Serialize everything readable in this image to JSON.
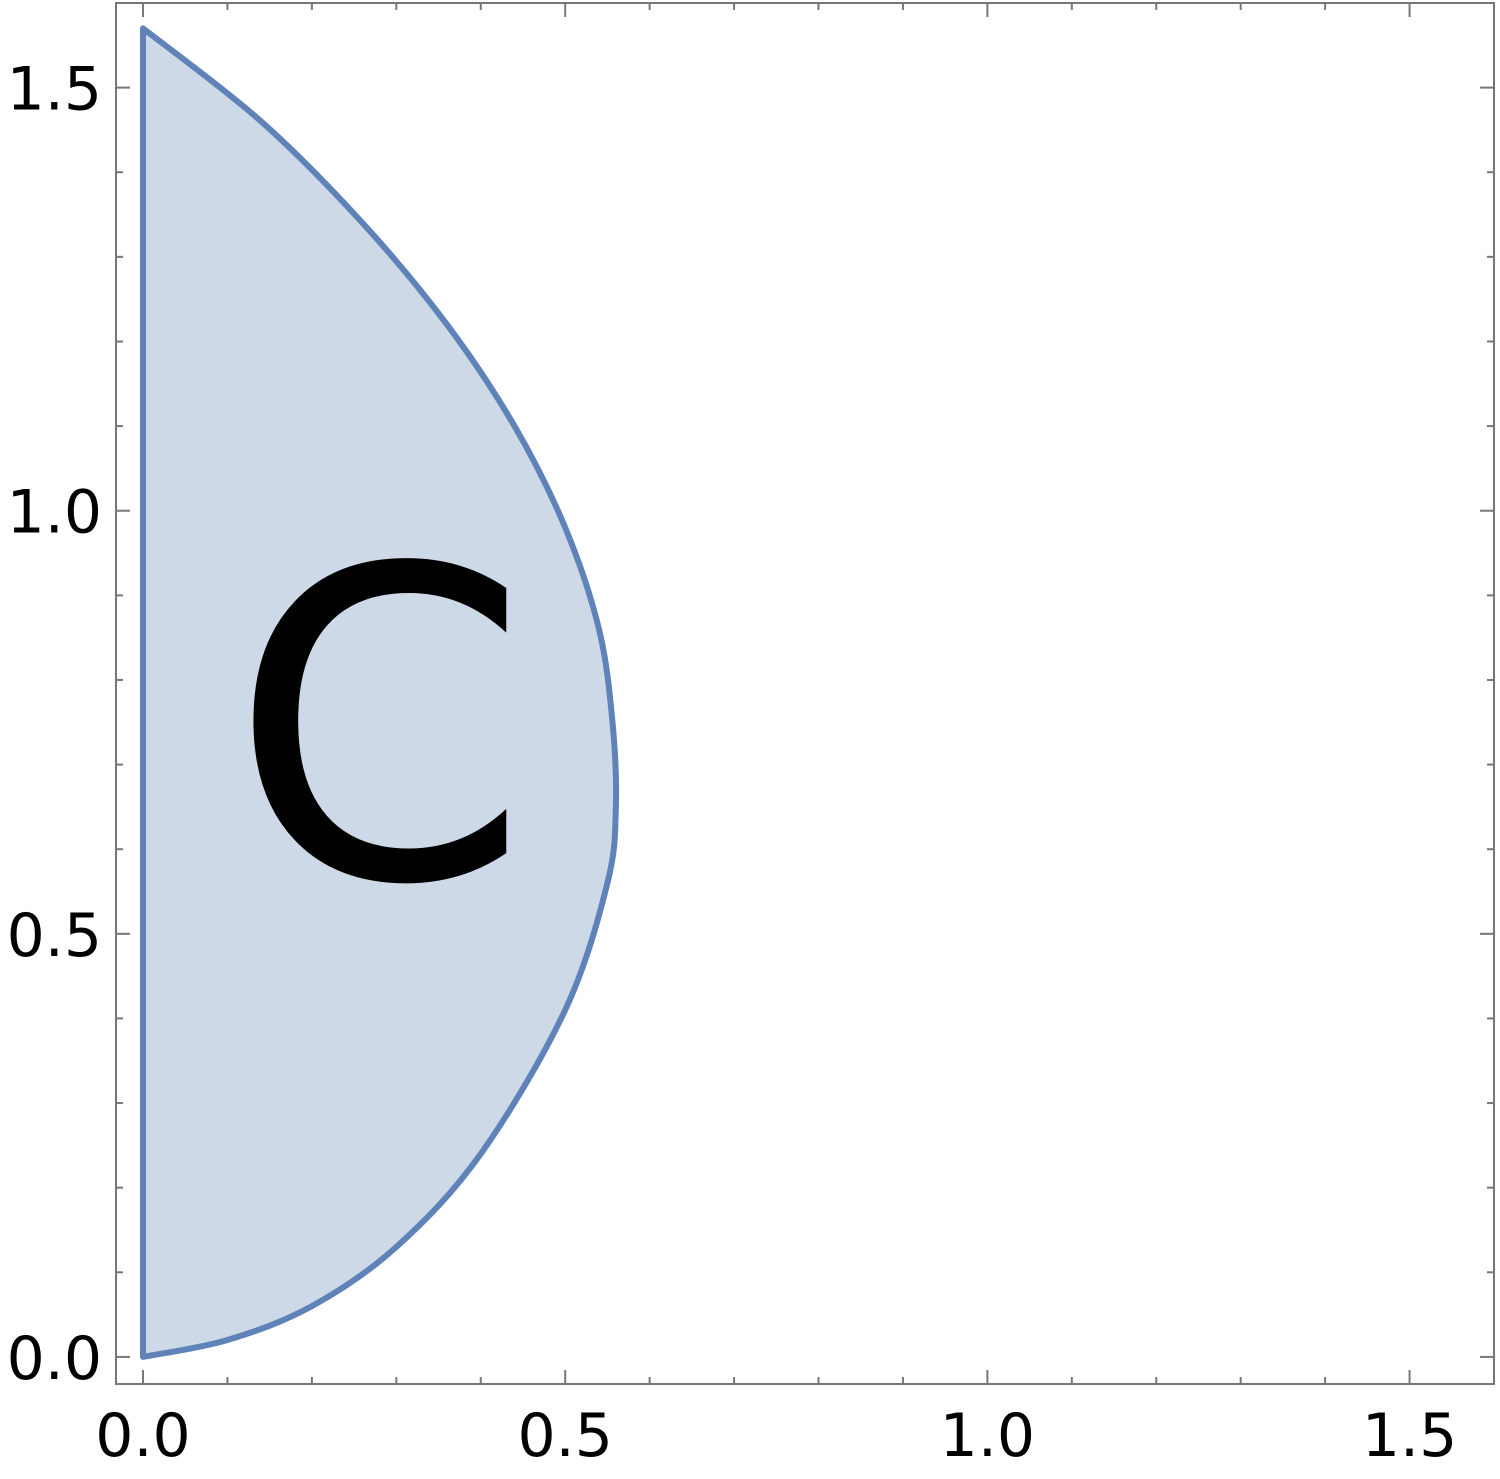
{
  "chart_data": {
    "type": "area",
    "title": "",
    "xlabel": "",
    "ylabel": "",
    "xlim": [
      -0.032,
      1.6
    ],
    "ylim": [
      -0.032,
      1.6
    ],
    "x_ticks": [
      0.0,
      0.5,
      1.0,
      1.5
    ],
    "y_ticks": [
      0.0,
      0.5,
      1.0,
      1.5
    ],
    "x_tick_labels": [
      "0.0",
      "0.5",
      "1.0",
      "1.5"
    ],
    "y_tick_labels": [
      "0.0",
      "0.5",
      "1.0",
      "1.5"
    ],
    "minor_tick_step": 0.1,
    "grid": false,
    "series": [
      {
        "region_label": "C",
        "label_position": [
          0.28,
          0.75
        ],
        "boundary": [
          {
            "x": 0.0,
            "y": 0.0
          },
          {
            "x": 0.1,
            "y": 0.02
          },
          {
            "x": 0.2,
            "y": 0.06
          },
          {
            "x": 0.3,
            "y": 0.13
          },
          {
            "x": 0.4,
            "y": 0.24
          },
          {
            "x": 0.5,
            "y": 0.41
          },
          {
            "x": 0.55,
            "y": 0.56
          },
          {
            "x": 0.56,
            "y": 0.65
          },
          {
            "x": 0.556,
            "y": 0.75
          },
          {
            "x": 0.54,
            "y": 0.86
          },
          {
            "x": 0.5,
            "y": 0.98
          },
          {
            "x": 0.44,
            "y": 1.1
          },
          {
            "x": 0.36,
            "y": 1.22
          },
          {
            "x": 0.26,
            "y": 1.34
          },
          {
            "x": 0.14,
            "y": 1.46
          },
          {
            "x": 0.0,
            "y": 1.57
          }
        ]
      }
    ],
    "colors": {
      "fill": "#cdd9e7",
      "stroke": "#5f83b8",
      "frame": "#777777",
      "text": "#000000"
    }
  }
}
